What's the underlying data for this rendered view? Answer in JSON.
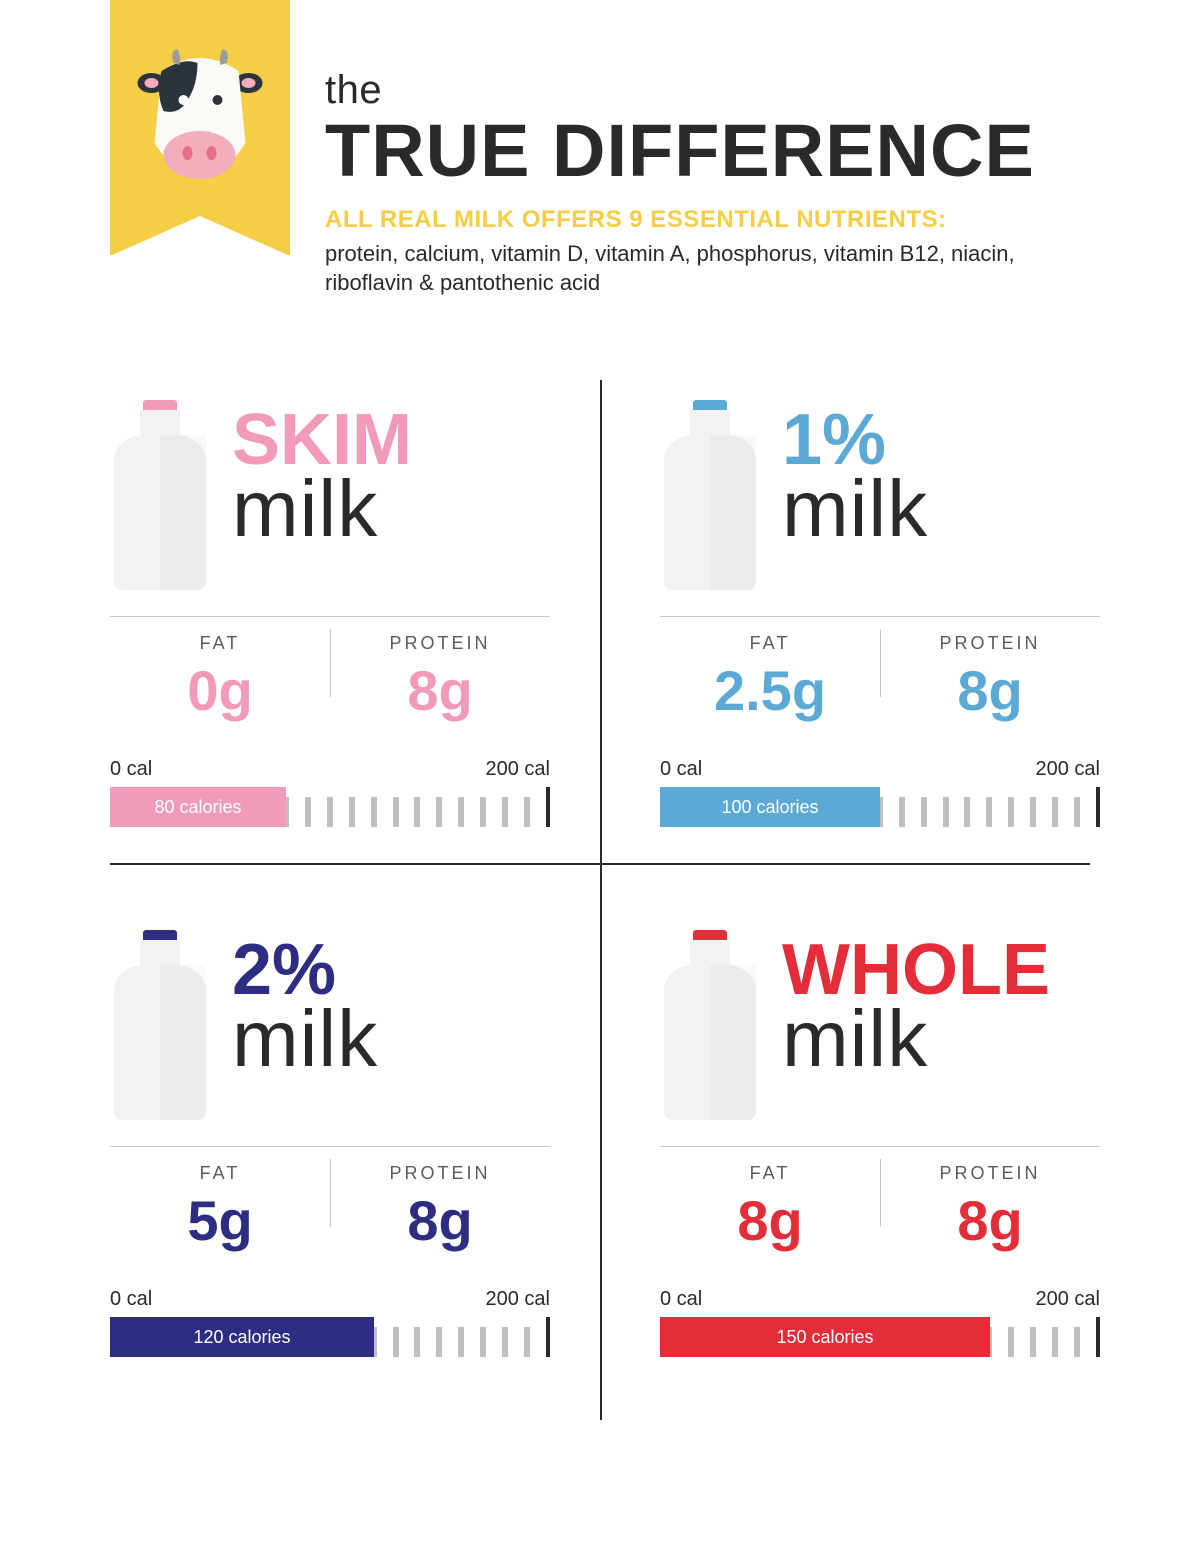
{
  "header": {
    "the": "the",
    "title": "TRUE DIFFERENCE",
    "subtitle": "ALL REAL MILK OFFERS 9 ESSENTIAL NUTRIENTS:",
    "nutrients": "protein, calcium, vitamin D, vitamin A, phosphorus, vitamin B12, niacin, riboflavin & pantothenic acid",
    "ribbon_color": "#f6cd46"
  },
  "labels": {
    "fat": "FAT",
    "protein": "PROTEIN",
    "milk_word": "milk"
  },
  "scale": {
    "min_label": "0 cal",
    "max_label": "200 cal",
    "min": 0,
    "max": 200,
    "tick_count": 21
  },
  "milks": [
    {
      "key": "skim",
      "type_label": "SKIM",
      "color": "#f19ab9",
      "cap_color": "#f19ab9",
      "fat": "0g",
      "protein": "8g",
      "calories": 80,
      "calories_label": "80 calories"
    },
    {
      "key": "one",
      "type_label": "1%",
      "color": "#5da9d6",
      "cap_color": "#5da9d6",
      "fat": "2.5g",
      "protein": "8g",
      "calories": 100,
      "calories_label": "100 calories"
    },
    {
      "key": "two",
      "type_label": "2%",
      "color": "#2d2e83",
      "cap_color": "#2d2e83",
      "fat": "5g",
      "protein": "8g",
      "calories": 120,
      "calories_label": "120 calories"
    },
    {
      "key": "whole",
      "type_label": "WHOLE",
      "color": "#e52d3a",
      "cap_color": "#e52d3a",
      "fat": "8g",
      "protein": "8g",
      "calories": 150,
      "calories_label": "150 calories"
    }
  ]
}
